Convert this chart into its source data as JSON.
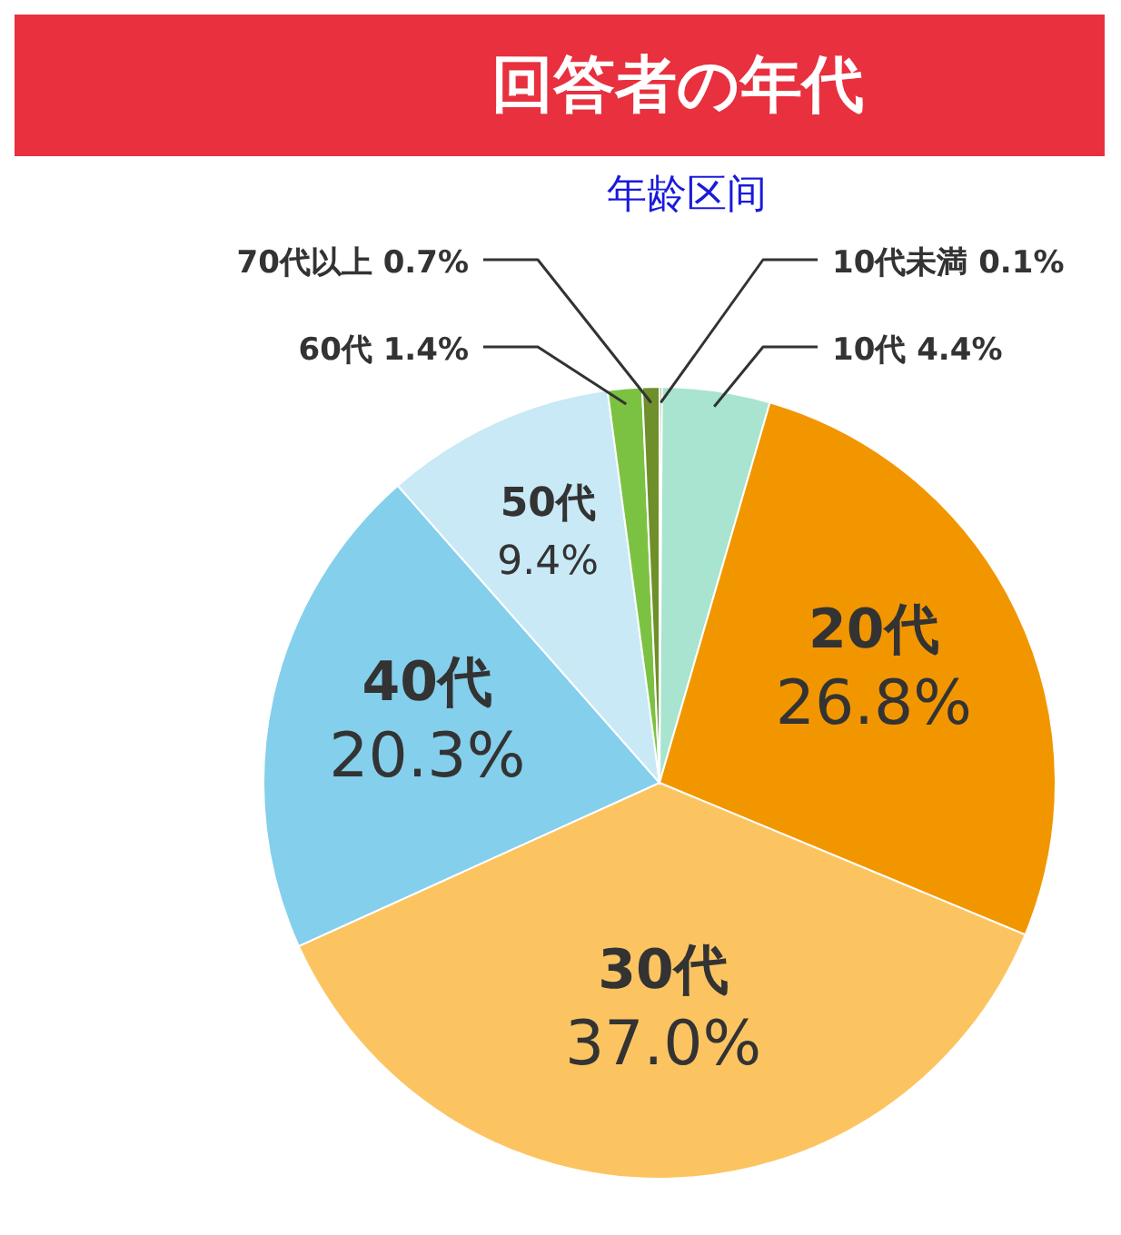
{
  "chart_data": {
    "type": "pie",
    "title": "回答者の年代",
    "subtitle": "年龄区间",
    "categories": [
      "10代未満",
      "10代",
      "20代",
      "30代",
      "40代",
      "50代",
      "60代",
      "70代以上"
    ],
    "values": [
      0.1,
      4.4,
      26.8,
      37.0,
      20.3,
      9.4,
      1.4,
      0.7
    ],
    "value_labels": [
      "0.1%",
      "4.4%",
      "26.8%",
      "37.0%",
      "20.3%",
      "9.4%",
      "1.4%",
      "0.7%"
    ],
    "colors": [
      "#6b7b2a",
      "#a8e4cf",
      "#f29600",
      "#fcc461",
      "#84cfec",
      "#c8e9f5",
      "#7cc242",
      "#6e8f2a"
    ]
  }
}
